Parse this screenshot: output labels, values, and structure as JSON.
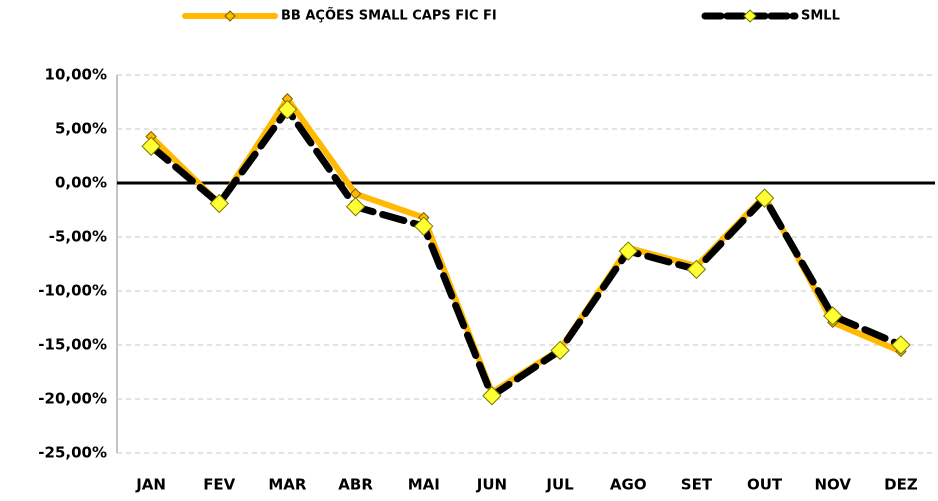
{
  "chart_data": {
    "type": "line",
    "categories": [
      "JAN",
      "FEV",
      "MAR",
      "ABR",
      "MAI",
      "JUN",
      "JUL",
      "AGO",
      "SET",
      "OUT",
      "NOV",
      "DEZ"
    ],
    "series": [
      {
        "name": "BB AÇÕES SMALL CAPS FIC FI",
        "color": "#ffb900",
        "values": [
          4.3,
          -1.9,
          7.8,
          -1.0,
          -3.2,
          -19.4,
          -15.4,
          -6.0,
          -7.7,
          -1.2,
          -12.9,
          -15.6
        ]
      },
      {
        "name": "SMLL",
        "color": "#000000",
        "values": [
          3.4,
          -1.9,
          6.8,
          -2.2,
          -4.0,
          -19.7,
          -15.5,
          -6.3,
          -8.0,
          -1.4,
          -12.3,
          -15.0
        ]
      }
    ],
    "ylim": [
      -25,
      10
    ],
    "yticks": [
      {
        "value": 10,
        "label": "10,00%"
      },
      {
        "value": 5,
        "label": "5,00%"
      },
      {
        "value": 0,
        "label": "0,00%"
      },
      {
        "value": -5,
        "label": "-5,00%"
      },
      {
        "value": -10,
        "label": "-10,00%"
      },
      {
        "value": -15,
        "label": "-15,00%"
      },
      {
        "value": -20,
        "label": "-20,00%"
      },
      {
        "value": -25,
        "label": "-25,00%"
      }
    ],
    "grid": true,
    "legend": "top"
  }
}
